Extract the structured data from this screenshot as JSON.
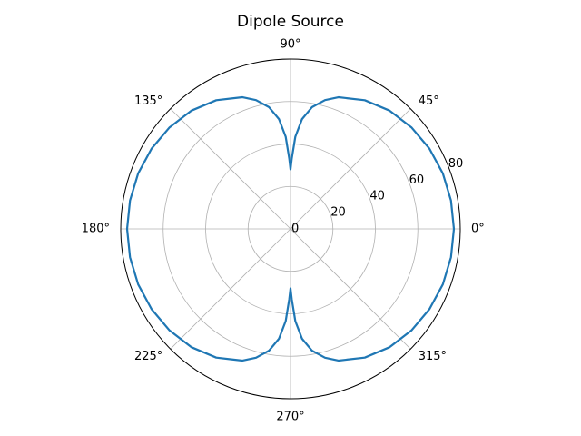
{
  "chart_data": {
    "type": "line",
    "projection": "polar",
    "title": "Dipole Source",
    "rlim": [
      0,
      80
    ],
    "radial_ticks": [
      0,
      20,
      40,
      60,
      80
    ],
    "radial_tick_labels": [
      "0",
      "20",
      "40",
      "60",
      "80"
    ],
    "angular_ticks_deg": [
      0,
      45,
      90,
      135,
      180,
      225,
      270,
      315
    ],
    "angular_tick_labels": [
      "0°",
      "45°",
      "90°",
      "135°",
      "180°",
      "225°",
      "270°",
      "315°"
    ],
    "grid": true,
    "series": [
      {
        "color": "#1f77b4",
        "theta_deg": [
          0,
          10,
          20,
          30,
          40,
          50,
          60,
          70,
          75,
          80,
          84,
          87,
          89,
          90,
          91,
          93,
          96,
          100,
          105,
          110,
          120,
          130,
          140,
          150,
          160,
          170,
          180,
          190,
          200,
          210,
          220,
          230,
          240,
          250,
          255,
          260,
          264,
          267,
          269,
          270,
          271,
          273,
          276,
          280,
          285,
          290,
          300,
          310,
          320,
          330,
          340,
          350,
          360
        ],
        "r": [
          77,
          76.8,
          76.4,
          75.6,
          74.4,
          72.7,
          70,
          66,
          62.8,
          58.2,
          52,
          43.5,
          33,
          28,
          33,
          43.5,
          52,
          58.2,
          62.8,
          66,
          70,
          72.7,
          74.4,
          75.6,
          76.4,
          76.8,
          77,
          76.8,
          76.4,
          75.6,
          74.4,
          72.7,
          70,
          66,
          62.8,
          58.2,
          52,
          43.5,
          33,
          28,
          33,
          43.5,
          52,
          58.2,
          62.8,
          66,
          70,
          72.7,
          74.4,
          75.6,
          76.4,
          76.8,
          77
        ]
      }
    ]
  }
}
